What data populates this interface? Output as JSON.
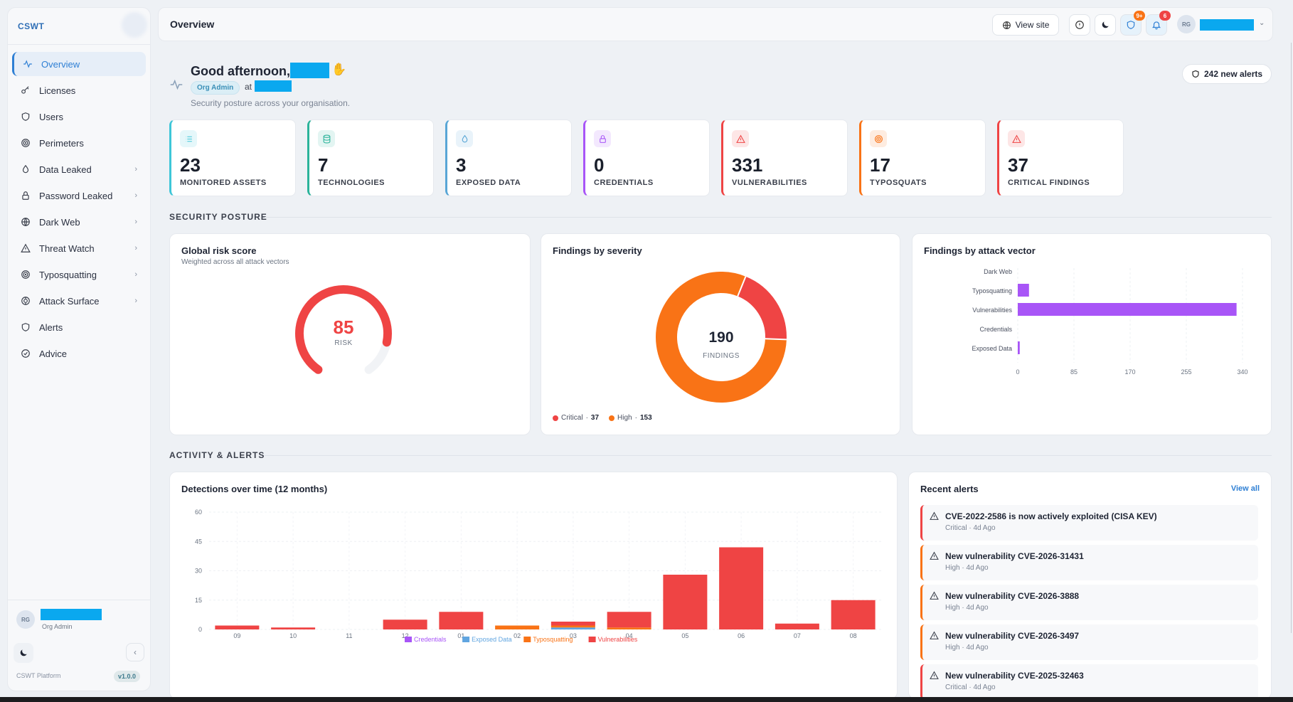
{
  "app": {
    "logo_text": "CSWT",
    "platform": "CSWT Platform",
    "version": "v1.0.0"
  },
  "sidebar": {
    "items": [
      {
        "label": "Overview",
        "icon": "activity-icon",
        "active": true
      },
      {
        "label": "Licenses",
        "icon": "key-icon"
      },
      {
        "label": "Users",
        "icon": "shield-icon"
      },
      {
        "label": "Perimeters",
        "icon": "target-icon"
      },
      {
        "label": "Data Leaked",
        "icon": "drop-icon",
        "chevron": true
      },
      {
        "label": "Password Leaked",
        "icon": "lock-icon",
        "chevron": true
      },
      {
        "label": "Dark Web",
        "icon": "globe-icon",
        "chevron": true
      },
      {
        "label": "Threat Watch",
        "icon": "warning-icon",
        "chevron": true
      },
      {
        "label": "Typosquatting",
        "icon": "target-icon",
        "chevron": true
      },
      {
        "label": "Attack Surface",
        "icon": "crosshair-icon",
        "chevron": true
      },
      {
        "label": "Alerts",
        "icon": "shield-icon"
      },
      {
        "label": "Advice",
        "icon": "check-circle-icon"
      }
    ],
    "user": {
      "initials": "RG",
      "role": "Org Admin"
    }
  },
  "header": {
    "title": "Overview",
    "view_site": "View site",
    "shield_badge": "9+",
    "bell_badge": "6",
    "user_initials": "RG"
  },
  "greeting": {
    "text": "Good afternoon,",
    "role": "Org Admin",
    "at": "at",
    "subtitle": "Security posture across your organisation.",
    "new_alerts": "242 new alerts"
  },
  "stats": [
    {
      "value": "23",
      "label": "MONITORED ASSETS",
      "color": "#3ec6d8"
    },
    {
      "value": "7",
      "label": "TECHNOLOGIES",
      "color": "#2bb39a"
    },
    {
      "value": "3",
      "label": "EXPOSED DATA",
      "color": "#58a6d6"
    },
    {
      "value": "0",
      "label": "CREDENTIALS",
      "color": "#a855f7"
    },
    {
      "value": "331",
      "label": "VULNERABILITIES",
      "color": "#ef4444"
    },
    {
      "value": "17",
      "label": "TYPOSQUATS",
      "color": "#f97316"
    },
    {
      "value": "37",
      "label": "CRITICAL FINDINGS",
      "color": "#ef4444"
    }
  ],
  "sections": {
    "posture": "SECURITY POSTURE",
    "activity": "ACTIVITY & ALERTS"
  },
  "risk": {
    "title": "Global risk score",
    "subtitle": "Weighted across all attack vectors",
    "value": "85",
    "label": "RISK",
    "fraction": 0.85,
    "color": "#ef4444"
  },
  "severity": {
    "title": "Findings by severity",
    "total": "190",
    "total_label": "FINDINGS",
    "legend": [
      {
        "name": "Critical",
        "value": "37",
        "color": "#ef4444"
      },
      {
        "name": "High",
        "value": "153",
        "color": "#f97316"
      }
    ]
  },
  "attack_vector": {
    "title": "Findings by attack vector",
    "categories": [
      "Dark Web",
      "Typosquatting",
      "Vulnerabilities",
      "Credentials",
      "Exposed Data"
    ],
    "values": [
      0,
      17,
      331,
      0,
      3
    ],
    "ticks": [
      "0",
      "85",
      "170",
      "255",
      "340"
    ],
    "xlim": [
      0,
      340
    ],
    "color": "#a855f7"
  },
  "detections": {
    "title": "Detections over time (12 months)",
    "chart_data": {
      "type": "bar",
      "stacked": true,
      "categories": [
        "09",
        "10",
        "11",
        "12",
        "01",
        "02",
        "03",
        "04",
        "05",
        "06",
        "07",
        "08"
      ],
      "ylim": [
        0,
        60
      ],
      "yticks": [
        "60",
        "45",
        "30",
        "15",
        "0"
      ],
      "series": [
        {
          "name": "Credentials",
          "color": "#a855f7",
          "values": [
            0,
            0,
            0,
            0,
            0,
            0,
            0,
            0,
            0,
            0,
            0,
            0
          ]
        },
        {
          "name": "Exposed Data",
          "color": "#60a5e0",
          "values": [
            0,
            0,
            0,
            0,
            0,
            0,
            1,
            0,
            0,
            0,
            0,
            0
          ]
        },
        {
          "name": "Typosquatting",
          "color": "#f97316",
          "values": [
            0,
            0,
            0,
            0,
            0,
            2,
            1,
            1,
            0,
            0,
            0,
            0
          ]
        },
        {
          "name": "Vulnerabilities",
          "color": "#ef4444",
          "values": [
            2,
            1,
            0,
            5,
            9,
            0,
            2,
            8,
            28,
            42,
            3,
            15
          ]
        }
      ]
    }
  },
  "recent_alerts": {
    "title": "Recent alerts",
    "view_all": "View all",
    "items": [
      {
        "title": "CVE-2022-2586 is now actively exploited (CISA KEV)",
        "meta": "Critical · 4d Ago",
        "color": "#ef4444"
      },
      {
        "title": "New vulnerability CVE-2026-31431",
        "meta": "High · 4d Ago",
        "color": "#f97316"
      },
      {
        "title": "New vulnerability CVE-2026-3888",
        "meta": "High · 4d Ago",
        "color": "#f97316"
      },
      {
        "title": "New vulnerability CVE-2026-3497",
        "meta": "High · 4d Ago",
        "color": "#f97316"
      },
      {
        "title": "New vulnerability CVE-2025-32463",
        "meta": "Critical · 4d Ago",
        "color": "#ef4444"
      }
    ]
  }
}
